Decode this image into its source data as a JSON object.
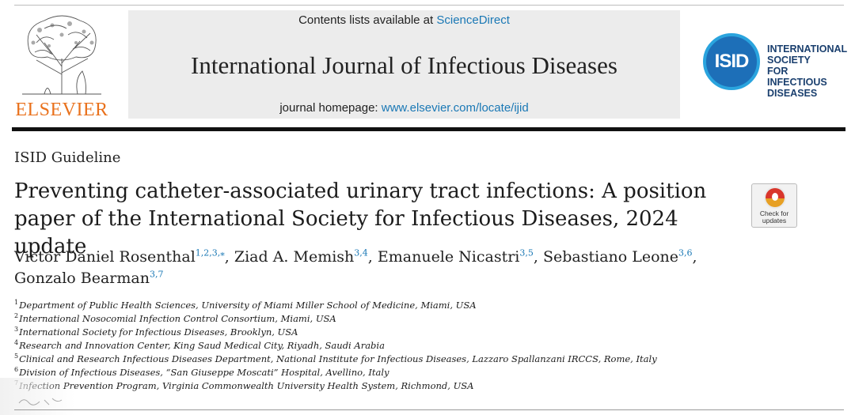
{
  "header": {
    "publisher": "ELSEVIER",
    "contents_prefix": "Contents lists available at ",
    "contents_link": "ScienceDirect",
    "journal_title": "International Journal of Infectious Diseases",
    "homepage_prefix": "journal homepage: ",
    "homepage_link": "www.elsevier.com/locate/ijid",
    "society_logo_text": "ISID",
    "society_name_lines": [
      "INTERNATIONAL",
      "SOCIETY",
      "FOR INFECTIOUS",
      "DISEASES"
    ],
    "brand_orange": "#e9711c",
    "link_blue": "#1a78b5"
  },
  "article": {
    "type": "ISID Guideline",
    "title": "Preventing catheter-associated urinary tract infections: A position paper of the International Society for Infectious Diseases, 2024 update",
    "check_updates": [
      "Check for",
      "updates"
    ],
    "authors": [
      {
        "name": "Victor Daniel Rosenthal",
        "sup": "1,2,3,⁎",
        "sep": ", "
      },
      {
        "name": "Ziad A. Memish",
        "sup": "3,4",
        "sep": ", "
      },
      {
        "name": "Emanuele Nicastri",
        "sup": "3,5",
        "sep": ", "
      },
      {
        "name": "Sebastiano Leone",
        "sup": "3,6",
        "sep": ","
      },
      {
        "name": "Gonzalo Bearman",
        "sup": "3,7",
        "sep": ""
      }
    ],
    "affiliations": [
      {
        "num": "1",
        "text": "Department of Public Health Sciences, University of Miami Miller School of Medicine, Miami, USA"
      },
      {
        "num": "2",
        "text": "International Nosocomial Infection Control Consortium, Miami, USA"
      },
      {
        "num": "3",
        "text": "International Society for Infectious Diseases, Brooklyn, USA"
      },
      {
        "num": "4",
        "text": "Research and Innovation Center, King Saud Medical City, Riyadh, Saudi Arabia"
      },
      {
        "num": "5",
        "text": "Clinical and Research Infectious Diseases Department, National Institute for Infectious Diseases, Lazzaro Spallanzani IRCCS, Rome, Italy"
      },
      {
        "num": "6",
        "text": "Division of Infectious Diseases, “San Giuseppe Moscati” Hospital, Avellino, Italy"
      },
      {
        "num": "7",
        "text": "Infection Prevention Program, Virginia Commonwealth University Health System, Richmond, USA"
      }
    ]
  }
}
